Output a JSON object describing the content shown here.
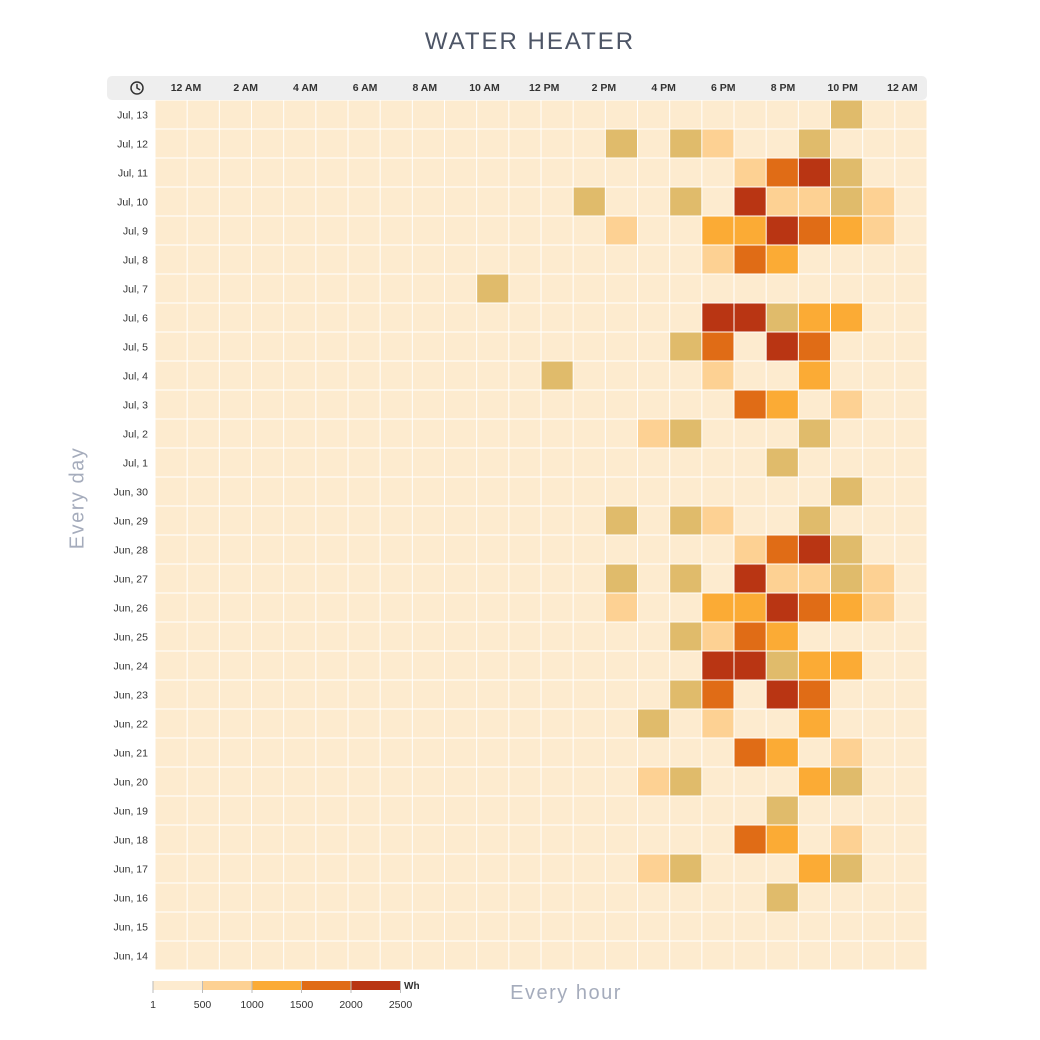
{
  "title": "WATER HEATER",
  "colors": {
    "header_bg": "#eeeeee",
    "cell_empty": "#fdebcf",
    "scale": [
      "#fdebcf",
      "#fdd193",
      "#fbab35",
      "#e06c16",
      "#b93513"
    ],
    "olive": "#e0bb6b"
  },
  "header_icon": "clock-icon",
  "chart_data": {
    "type": "heatmap",
    "title": "WATER HEATER",
    "xlabel": "Every hour",
    "ylabel": "Every day",
    "x_tick_labels": [
      "12 AM",
      "2 AM",
      "4 AM",
      "6 AM",
      "8 AM",
      "10 AM",
      "12 PM",
      "2 PM",
      "4 PM",
      "6 PM",
      "8 PM",
      "10 PM",
      "12 AM"
    ],
    "hours": [
      0,
      1,
      2,
      3,
      4,
      5,
      6,
      7,
      8,
      9,
      10,
      11,
      12,
      13,
      14,
      15,
      16,
      17,
      18,
      19,
      20,
      21,
      22,
      23
    ],
    "days": [
      "Jul, 13",
      "Jul, 12",
      "Jul, 11",
      "Jul, 10",
      "Jul, 9",
      "Jul, 8",
      "Jul, 7",
      "Jul, 6",
      "Jul, 5",
      "Jul, 4",
      "Jul, 3",
      "Jul, 2",
      "Jul, 1",
      "Jun, 30",
      "Jun, 29",
      "Jun, 28",
      "Jun, 27",
      "Jun, 26",
      "Jun, 25",
      "Jun, 24",
      "Jun, 23",
      "Jun, 22",
      "Jun, 21",
      "Jun, 20",
      "Jun, 19",
      "Jun, 18",
      "Jun, 17",
      "Jun, 16",
      "Jun, 15",
      "Jun, 14"
    ],
    "value_unit": "Wh",
    "legend": {
      "ticks": [
        "1",
        "500",
        "1000",
        "1500",
        "2000",
        "2500"
      ],
      "unit": "Wh",
      "placement": "bottom-left"
    },
    "cells": [
      {
        "day": "Jul, 13",
        "hour": 21,
        "value": 800
      },
      {
        "day": "Jul, 12",
        "hour": 14,
        "value": 800
      },
      {
        "day": "Jul, 12",
        "hour": 16,
        "value": 800
      },
      {
        "day": "Jul, 12",
        "hour": 17,
        "value": 400
      },
      {
        "day": "Jul, 12",
        "hour": 20,
        "value": 800
      },
      {
        "day": "Jul, 11",
        "hour": 18,
        "value": 400
      },
      {
        "day": "Jul, 11",
        "hour": 19,
        "value": 1800
      },
      {
        "day": "Jul, 11",
        "hour": 20,
        "value": 2300
      },
      {
        "day": "Jul, 11",
        "hour": 21,
        "value": 800
      },
      {
        "day": "Jul, 10",
        "hour": 13,
        "value": 800
      },
      {
        "day": "Jul, 10",
        "hour": 16,
        "value": 800
      },
      {
        "day": "Jul, 10",
        "hour": 18,
        "value": 2300
      },
      {
        "day": "Jul, 10",
        "hour": 19,
        "value": 400
      },
      {
        "day": "Jul, 10",
        "hour": 20,
        "value": 400
      },
      {
        "day": "Jul, 10",
        "hour": 21,
        "value": 800
      },
      {
        "day": "Jul, 10",
        "hour": 22,
        "value": 400
      },
      {
        "day": "Jul, 9",
        "hour": 14,
        "value": 400
      },
      {
        "day": "Jul, 9",
        "hour": 17,
        "value": 1200
      },
      {
        "day": "Jul, 9",
        "hour": 18,
        "value": 1200
      },
      {
        "day": "Jul, 9",
        "hour": 19,
        "value": 2300
      },
      {
        "day": "Jul, 9",
        "hour": 20,
        "value": 1800
      },
      {
        "day": "Jul, 9",
        "hour": 21,
        "value": 1200
      },
      {
        "day": "Jul, 9",
        "hour": 22,
        "value": 400
      },
      {
        "day": "Jul, 8",
        "hour": 17,
        "value": 400
      },
      {
        "day": "Jul, 8",
        "hour": 18,
        "value": 1800
      },
      {
        "day": "Jul, 8",
        "hour": 19,
        "value": 1200
      },
      {
        "day": "Jul, 7",
        "hour": 10,
        "value": 800
      },
      {
        "day": "Jul, 6",
        "hour": 17,
        "value": 2300
      },
      {
        "day": "Jul, 6",
        "hour": 18,
        "value": 2300
      },
      {
        "day": "Jul, 6",
        "hour": 19,
        "value": 800
      },
      {
        "day": "Jul, 6",
        "hour": 20,
        "value": 1200
      },
      {
        "day": "Jul, 6",
        "hour": 21,
        "value": 1200
      },
      {
        "day": "Jul, 5",
        "hour": 16,
        "value": 800
      },
      {
        "day": "Jul, 5",
        "hour": 17,
        "value": 1800
      },
      {
        "day": "Jul, 5",
        "hour": 19,
        "value": 2300
      },
      {
        "day": "Jul, 5",
        "hour": 20,
        "value": 1800
      },
      {
        "day": "Jul, 4",
        "hour": 12,
        "value": 800
      },
      {
        "day": "Jul, 4",
        "hour": 17,
        "value": 400
      },
      {
        "day": "Jul, 4",
        "hour": 20,
        "value": 1200
      },
      {
        "day": "Jul, 3",
        "hour": 18,
        "value": 1800
      },
      {
        "day": "Jul, 3",
        "hour": 19,
        "value": 1200
      },
      {
        "day": "Jul, 3",
        "hour": 21,
        "value": 400
      },
      {
        "day": "Jul, 2",
        "hour": 15,
        "value": 400
      },
      {
        "day": "Jul, 2",
        "hour": 16,
        "value": 800
      },
      {
        "day": "Jul, 2",
        "hour": 20,
        "value": 800
      },
      {
        "day": "Jul, 1",
        "hour": 19,
        "value": 800
      },
      {
        "day": "Jun, 30",
        "hour": 21,
        "value": 800
      },
      {
        "day": "Jun, 29",
        "hour": 14,
        "value": 800
      },
      {
        "day": "Jun, 29",
        "hour": 16,
        "value": 800
      },
      {
        "day": "Jun, 29",
        "hour": 17,
        "value": 400
      },
      {
        "day": "Jun, 29",
        "hour": 20,
        "value": 800
      },
      {
        "day": "Jun, 28",
        "hour": 18,
        "value": 400
      },
      {
        "day": "Jun, 28",
        "hour": 19,
        "value": 1800
      },
      {
        "day": "Jun, 28",
        "hour": 20,
        "value": 2300
      },
      {
        "day": "Jun, 28",
        "hour": 21,
        "value": 800
      },
      {
        "day": "Jun, 27",
        "hour": 14,
        "value": 800
      },
      {
        "day": "Jun, 27",
        "hour": 16,
        "value": 800
      },
      {
        "day": "Jun, 27",
        "hour": 18,
        "value": 2300
      },
      {
        "day": "Jun, 27",
        "hour": 19,
        "value": 400
      },
      {
        "day": "Jun, 27",
        "hour": 20,
        "value": 400
      },
      {
        "day": "Jun, 27",
        "hour": 21,
        "value": 800
      },
      {
        "day": "Jun, 27",
        "hour": 22,
        "value": 400
      },
      {
        "day": "Jun, 26",
        "hour": 14,
        "value": 400
      },
      {
        "day": "Jun, 26",
        "hour": 17,
        "value": 1200
      },
      {
        "day": "Jun, 26",
        "hour": 18,
        "value": 1200
      },
      {
        "day": "Jun, 26",
        "hour": 19,
        "value": 2300
      },
      {
        "day": "Jun, 26",
        "hour": 20,
        "value": 1800
      },
      {
        "day": "Jun, 26",
        "hour": 21,
        "value": 1200
      },
      {
        "day": "Jun, 26",
        "hour": 22,
        "value": 400
      },
      {
        "day": "Jun, 25",
        "hour": 16,
        "value": 800
      },
      {
        "day": "Jun, 25",
        "hour": 17,
        "value": 400
      },
      {
        "day": "Jun, 25",
        "hour": 18,
        "value": 1800
      },
      {
        "day": "Jun, 25",
        "hour": 19,
        "value": 1200
      },
      {
        "day": "Jun, 24",
        "hour": 17,
        "value": 2300
      },
      {
        "day": "Jun, 24",
        "hour": 18,
        "value": 2300
      },
      {
        "day": "Jun, 24",
        "hour": 19,
        "value": 800
      },
      {
        "day": "Jun, 24",
        "hour": 20,
        "value": 1200
      },
      {
        "day": "Jun, 24",
        "hour": 21,
        "value": 1200
      },
      {
        "day": "Jun, 23",
        "hour": 16,
        "value": 800
      },
      {
        "day": "Jun, 23",
        "hour": 17,
        "value": 1800
      },
      {
        "day": "Jun, 23",
        "hour": 19,
        "value": 2300
      },
      {
        "day": "Jun, 23",
        "hour": 20,
        "value": 1800
      },
      {
        "day": "Jun, 22",
        "hour": 15,
        "value": 800
      },
      {
        "day": "Jun, 22",
        "hour": 17,
        "value": 400
      },
      {
        "day": "Jun, 22",
        "hour": 20,
        "value": 1200
      },
      {
        "day": "Jun, 21",
        "hour": 18,
        "value": 1800
      },
      {
        "day": "Jun, 21",
        "hour": 19,
        "value": 1200
      },
      {
        "day": "Jun, 21",
        "hour": 21,
        "value": 400
      },
      {
        "day": "Jun, 20",
        "hour": 15,
        "value": 400
      },
      {
        "day": "Jun, 20",
        "hour": 16,
        "value": 800
      },
      {
        "day": "Jun, 20",
        "hour": 20,
        "value": 1200
      },
      {
        "day": "Jun, 20",
        "hour": 21,
        "value": 800
      },
      {
        "day": "Jun, 19",
        "hour": 19,
        "value": 800
      },
      {
        "day": "Jun, 18",
        "hour": 18,
        "value": 1800
      },
      {
        "day": "Jun, 18",
        "hour": 19,
        "value": 1200
      },
      {
        "day": "Jun, 18",
        "hour": 21,
        "value": 400
      },
      {
        "day": "Jun, 17",
        "hour": 15,
        "value": 400
      },
      {
        "day": "Jun, 17",
        "hour": 16,
        "value": 800
      },
      {
        "day": "Jun, 17",
        "hour": 20,
        "value": 1200
      },
      {
        "day": "Jun, 17",
        "hour": 21,
        "value": 800
      },
      {
        "day": "Jun, 16",
        "hour": 19,
        "value": 800
      }
    ]
  }
}
